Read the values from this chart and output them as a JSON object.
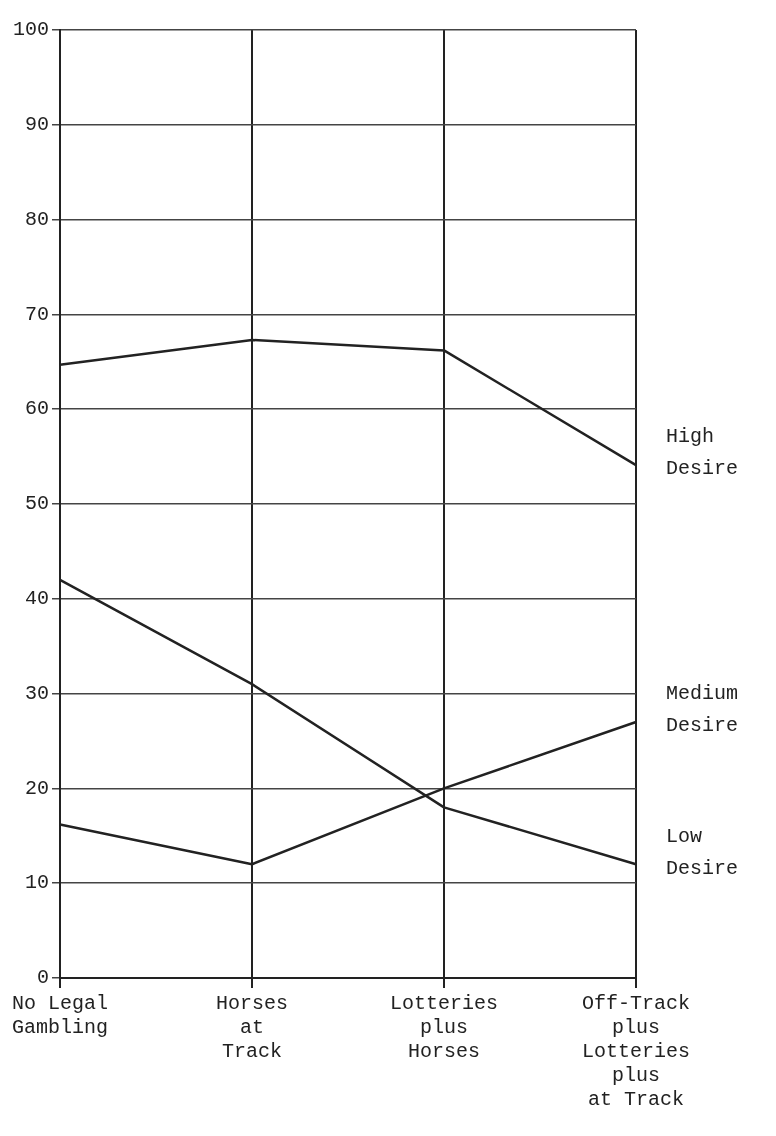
{
  "chart_data": {
    "type": "line",
    "categories": [
      "No Legal\nGambling",
      "Horses\nat\nTrack",
      "Lotteries\nplus\nHorses",
      "Off-Track\nplus\nLotteries\nplus\nat Track"
    ],
    "series": [
      {
        "name": "High Desire",
        "color": "#222222",
        "values": [
          64.7,
          67.3,
          66.2,
          54.1
        ]
      },
      {
        "name": "Medium Desire",
        "color": "#222222",
        "values": [
          16.2,
          12,
          20,
          27
        ]
      },
      {
        "name": "Low Desire",
        "color": "#222222",
        "values": [
          42,
          31,
          18,
          12
        ]
      }
    ],
    "ylim": [
      0,
      100
    ],
    "yticks": [
      0,
      10,
      20,
      30,
      40,
      50,
      60,
      70,
      80,
      90,
      100
    ],
    "grid": true,
    "marker": "none",
    "line_style": "solid"
  }
}
